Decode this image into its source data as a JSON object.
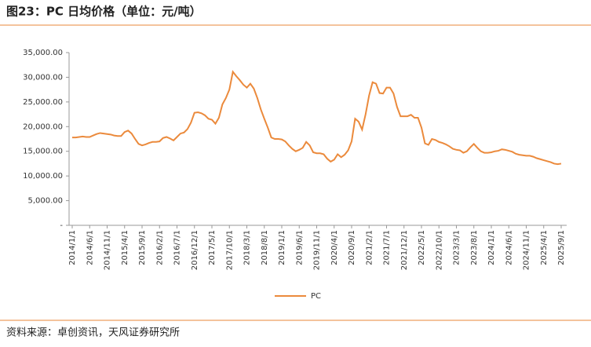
{
  "chart_data": {
    "type": "line",
    "title": "图23：PC 日均价格（单位：元/吨）",
    "source": "资料来源：卓创资讯，天风证券研究所",
    "categories": [
      "2014/1/1",
      null,
      null,
      null,
      null,
      "2014/6/1",
      null,
      null,
      null,
      null,
      "2014/11/1",
      null,
      null,
      null,
      null,
      "2015/4/1",
      null,
      null,
      null,
      null,
      "2015/9/1",
      null,
      null,
      null,
      null,
      "2016/2/1",
      null,
      null,
      null,
      null,
      "2016/7/1",
      null,
      null,
      null,
      null,
      "2016/12/1",
      null,
      null,
      null,
      null,
      "2017/5/1",
      null,
      null,
      null,
      null,
      "2017/10/1",
      null,
      null,
      null,
      null,
      "2018/3/1",
      null,
      null,
      null,
      null,
      "2018/8/1",
      null,
      null,
      null,
      null,
      "2019/1/1",
      null,
      null,
      null,
      null,
      "2019/6/1",
      null,
      null,
      null,
      null,
      "2019/11/1",
      null,
      null,
      null,
      null,
      "2020/4/1",
      null,
      null,
      null,
      null,
      "2020/9/1",
      null,
      null,
      null,
      null,
      "2021/2/1",
      null,
      null,
      null,
      null,
      "2021/7/1",
      null,
      null,
      null,
      null,
      "2021/12/1",
      null,
      null,
      null,
      null,
      "2022/5/1",
      null,
      null,
      null,
      null,
      "2022/10/1",
      null,
      null,
      null,
      null,
      "2023/3/1",
      null,
      null,
      null,
      null,
      "2023/8/1",
      null,
      null,
      null,
      null,
      "2024/1/1",
      null,
      null,
      null,
      null,
      "2024/6/1",
      null,
      null,
      null,
      null,
      "2024/11/1",
      null,
      null,
      null,
      null,
      "2025/4/1",
      null,
      null,
      null,
      null,
      "2025/9/1"
    ],
    "series": [
      {
        "name": "PC",
        "color": "#eb8a3c",
        "values": [
          17800,
          17800,
          17900,
          18000,
          17900,
          17900,
          18200,
          18500,
          18700,
          18600,
          18500,
          18400,
          18200,
          18100,
          18100,
          18900,
          19200,
          18600,
          17500,
          16500,
          16200,
          16400,
          16700,
          16900,
          16900,
          17000,
          17700,
          17900,
          17600,
          17200,
          17900,
          18600,
          18800,
          19500,
          20800,
          22800,
          22900,
          22700,
          22300,
          21600,
          21400,
          20600,
          21800,
          24500,
          25800,
          27500,
          31100,
          30200,
          29400,
          28500,
          27900,
          28700,
          27700,
          25800,
          23500,
          21600,
          19800,
          17800,
          17500,
          17500,
          17400,
          17000,
          16200,
          15500,
          15000,
          15300,
          15700,
          16900,
          16200,
          14800,
          14600,
          14600,
          14400,
          13500,
          12900,
          13300,
          14400,
          13800,
          14300,
          15200,
          17000,
          21600,
          21000,
          19400,
          22500,
          26300,
          29000,
          28700,
          26800,
          26700,
          27900,
          27900,
          26700,
          24000,
          22100,
          22100,
          22100,
          22400,
          21800,
          21800,
          19800,
          16600,
          16300,
          17500,
          17300,
          16900,
          16700,
          16400,
          16000,
          15500,
          15300,
          15200,
          14700,
          15000,
          15800,
          16500,
          15700,
          15000,
          14700,
          14700,
          14800,
          15000,
          15100,
          15400,
          15300,
          15100,
          14900,
          14500,
          14300,
          14200,
          14100,
          14100,
          13900,
          13600,
          13400,
          13200,
          13000,
          12800,
          12500,
          12400,
          12500
        ]
      }
    ],
    "ylim": [
      0,
      35000
    ],
    "yticks": [
      {
        "value": 0,
        "label": "-"
      },
      {
        "value": 5000,
        "label": "5,000.00"
      },
      {
        "value": 10000,
        "label": "10,000.00"
      },
      {
        "value": 15000,
        "label": "15,000.00"
      },
      {
        "value": 20000,
        "label": "20,000.00"
      },
      {
        "value": 25000,
        "label": "25,000.00"
      },
      {
        "value": 30000,
        "label": "30,000.00"
      },
      {
        "value": 35000,
        "label": "35,000.00"
      }
    ],
    "grid": false,
    "legend": "bottom"
  }
}
